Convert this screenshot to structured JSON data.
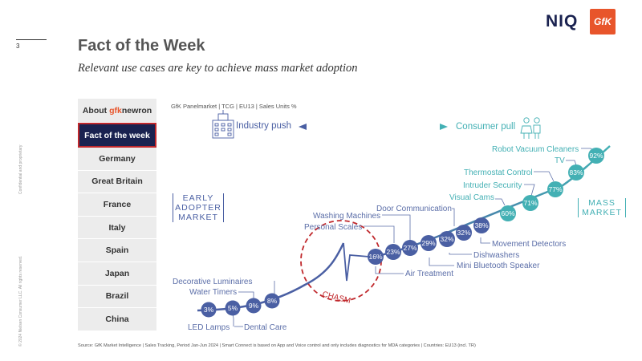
{
  "page_number": "3",
  "title": "Fact of the Week",
  "subtitle": "Relevant use cases are key to achieve mass market adoption",
  "brand": {
    "niq": "NIQ",
    "gfk": "GfK",
    "niq_color": "#1a2250",
    "gfk_color": "#e8552b"
  },
  "side_text": {
    "confidential": "Confidential and proprietary",
    "copyright": "© 2024 Nielsen Consumer LLC. All rights reserved."
  },
  "nav": {
    "about_prefix": "About ",
    "about_brand_gfk": "gfk",
    "about_brand_rest": "newron",
    "items": [
      "Fact of the week",
      "Germany",
      "Great Britain",
      "France",
      "Italy",
      "Spain",
      "Japan",
      "Brazil",
      "China"
    ]
  },
  "panel_label": "GfK Panelmarket | TCG | EU13 | Sales Units %",
  "industry_push": "Industry push",
  "consumer_pull": "Consumer pull",
  "early_adopter": [
    "EARLY",
    "ADOPTER",
    "MARKET"
  ],
  "mass_market": [
    "MASS",
    "MARKET"
  ],
  "chasm": "CHASM",
  "source": "Source: GfK Market Intelligence | Sales Tracking, Period Jan-Jun 2024 | Smart Connect is based on App and Voice control and only includes diagnostics for MDA categories | Countries: EU13 (incl. TR)",
  "points": [
    {
      "label": "3%",
      "category": "LED Lamps",
      "value": 3
    },
    {
      "label": "5%",
      "category": "Dental Care",
      "value": 5
    },
    {
      "label": "9%",
      "category": "Water Timers",
      "value": 9
    },
    {
      "label": "8%",
      "category": "Decorative Luminaires",
      "value": 8
    },
    {
      "label": "16%",
      "category": "Air Treatment",
      "value": 16
    },
    {
      "label": "23%",
      "category": "Personal Scales",
      "value": 23
    },
    {
      "label": "27%",
      "category": "Washing Machines",
      "value": 27
    },
    {
      "label": "29%",
      "category": "Mini Bluetooth Speaker",
      "value": 29
    },
    {
      "label": "32%",
      "category": "Dishwashers",
      "value": 32
    },
    {
      "label": "32%",
      "category": "Door Communication",
      "value": 32
    },
    {
      "label": "38%",
      "category": "Movement Detectors",
      "value": 38
    },
    {
      "label": "60%",
      "category": "Visual Cams",
      "value": 60
    },
    {
      "label": "71%",
      "category": "Intruder Security",
      "value": 71
    },
    {
      "label": "77%",
      "category": "Thermostat Control",
      "value": 77
    },
    {
      "label": "83%",
      "category": "TV",
      "value": 83
    },
    {
      "label": "92%",
      "category": "Robot Vacuum Cleaners",
      "value": 92
    }
  ]
}
